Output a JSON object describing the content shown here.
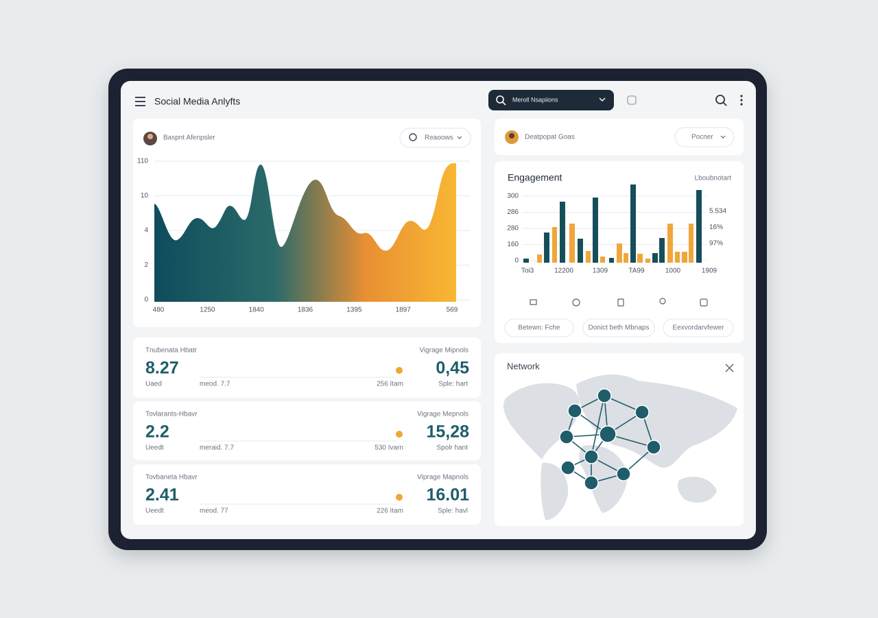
{
  "header": {
    "title": "Social Media Anlyfts",
    "search": "Meroll Nsapiions"
  },
  "area_card": {
    "user": "Baspnt Afenpsler",
    "dropdown": "Reaoows",
    "y_labels": [
      "110",
      "10",
      "4",
      "2",
      "0"
    ],
    "x_labels": [
      "480",
      "1250",
      "1840",
      "1836",
      "1395",
      "1897",
      "569"
    ]
  },
  "stats": [
    {
      "left_label": "Tnubenata Hbatr",
      "left_value": "8.27",
      "left_sub": "Uaed",
      "mid": "meod. 7.7",
      "right_mid": "256 Itam",
      "right_label": "Vigrage Mipnols",
      "right_value": "0,45",
      "right_sub": "Sple: hart"
    },
    {
      "left_label": "Tovlarants-Hbavr",
      "left_value": "2.2",
      "left_sub": "Ueedt",
      "mid": "meraid. 7.7",
      "right_mid": "530 Ivarn",
      "right_label": "Vigrage Mepnols",
      "right_value": "15,28",
      "right_sub": "Spolr hant"
    },
    {
      "left_label": "Tovbaneta Hbavr",
      "left_value": "2.41",
      "left_sub": "Ueedt",
      "mid": "meod. 77",
      "right_mid": "226 Itam",
      "right_label": "Viprage Mapnols",
      "right_value": "16.01",
      "right_sub": "Sple: havl"
    }
  ],
  "goal_card": {
    "user": "Deatpopat Goas",
    "dropdown": "Pocner"
  },
  "engagement": {
    "title": "Engagement",
    "subtitle": "Lboubnotart",
    "y_labels": [
      "300",
      "286",
      "280",
      "160",
      "0"
    ],
    "x_labels": [
      "Toi3",
      "12200",
      "1309",
      "TA99",
      "1000",
      "1909"
    ],
    "side_labels": [
      "5.534",
      "16%",
      "97%"
    ],
    "buttons": [
      "Betewn: Fche",
      "Donict beth Mbnaps",
      "Eexvordarvfewer"
    ]
  },
  "network": {
    "title": "Network"
  }
}
